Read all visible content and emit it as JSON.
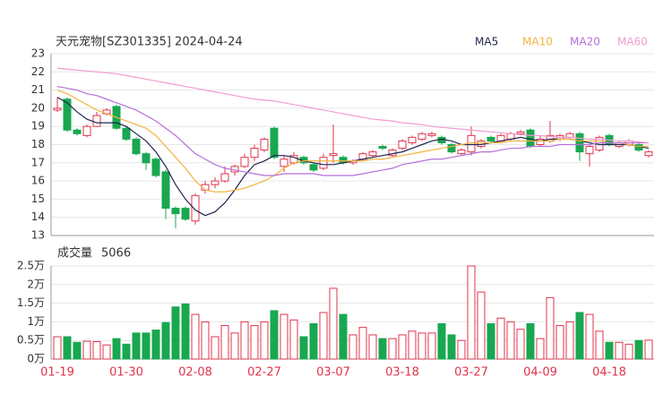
{
  "chart_data": [
    {
      "type": "candlestick",
      "title": "天元宠物[SZ301335] 2024-04-24",
      "categories": [
        "01-19",
        null,
        null,
        null,
        null,
        null,
        null,
        "01-30",
        null,
        null,
        null,
        null,
        null,
        null,
        "02-08",
        null,
        null,
        null,
        null,
        null,
        null,
        "02-27",
        null,
        null,
        null,
        null,
        null,
        null,
        "03-07",
        null,
        null,
        null,
        null,
        null,
        null,
        "03-18",
        null,
        null,
        null,
        null,
        null,
        null,
        "03-27",
        null,
        null,
        null,
        null,
        null,
        null,
        "04-09",
        null,
        null,
        null,
        null,
        null,
        null,
        "04-18",
        null,
        null,
        null,
        null
      ],
      "open": [
        19.9,
        20.5,
        18.8,
        18.5,
        19.0,
        19.7,
        20.1,
        18.9,
        18.3,
        17.5,
        17.2,
        16.5,
        14.5,
        14.5,
        13.8,
        15.5,
        15.8,
        16.0,
        16.5,
        16.8,
        17.3,
        17.7,
        18.9,
        16.8,
        17.0,
        17.3,
        16.9,
        16.7,
        17.4,
        17.3,
        17.0,
        17.2,
        17.4,
        17.9,
        17.4,
        17.8,
        18.1,
        18.3,
        18.5,
        18.4,
        18.0,
        17.5,
        17.6,
        17.9,
        18.4,
        18.2,
        18.3,
        18.6,
        18.8,
        18.0,
        18.2,
        18.3,
        18.4,
        18.6,
        17.5,
        17.7,
        18.5,
        17.9,
        18.0,
        18.0,
        17.4
      ],
      "high": [
        20.6,
        20.6,
        18.9,
        19.1,
        19.8,
        20.0,
        20.2,
        19.0,
        18.4,
        17.6,
        17.3,
        16.6,
        14.6,
        14.6,
        15.3,
        16.0,
        16.2,
        16.8,
        16.9,
        17.5,
        18.0,
        18.4,
        19.0,
        17.4,
        17.6,
        17.4,
        17.0,
        17.5,
        19.1,
        17.4,
        17.2,
        17.6,
        17.7,
        18.0,
        17.8,
        18.3,
        18.5,
        18.7,
        18.7,
        18.5,
        18.1,
        17.8,
        19.0,
        18.3,
        18.5,
        18.6,
        18.7,
        18.8,
        18.9,
        18.5,
        19.3,
        18.6,
        18.7,
        18.7,
        18.0,
        18.5,
        18.6,
        18.2,
        18.3,
        18.1,
        17.7
      ],
      "low": [
        19.8,
        18.7,
        18.5,
        18.4,
        19.0,
        19.6,
        18.8,
        18.2,
        17.4,
        16.6,
        16.2,
        13.9,
        13.4,
        13.8,
        13.6,
        15.3,
        15.6,
        15.9,
        16.3,
        16.7,
        17.1,
        17.6,
        17.2,
        16.5,
        16.9,
        16.9,
        16.5,
        16.6,
        17.0,
        16.9,
        16.9,
        17.1,
        17.3,
        17.7,
        17.3,
        17.7,
        18.0,
        18.2,
        18.4,
        18.0,
        17.5,
        17.4,
        17.4,
        17.8,
        18.1,
        18.1,
        18.2,
        18.5,
        17.8,
        17.9,
        18.1,
        18.2,
        18.3,
        17.1,
        16.8,
        17.6,
        17.9,
        17.8,
        17.9,
        17.6,
        17.3
      ],
      "close": [
        20.0,
        18.8,
        18.6,
        19.0,
        19.6,
        19.9,
        18.9,
        18.3,
        17.5,
        17.0,
        16.3,
        14.5,
        14.2,
        13.9,
        15.2,
        15.8,
        16.0,
        16.4,
        16.8,
        17.3,
        17.8,
        18.3,
        17.3,
        17.2,
        17.4,
        17.0,
        16.6,
        17.3,
        17.5,
        17.0,
        17.1,
        17.5,
        17.6,
        17.8,
        17.7,
        18.2,
        18.4,
        18.6,
        18.6,
        18.1,
        17.6,
        17.7,
        18.5,
        18.2,
        18.2,
        18.5,
        18.6,
        18.7,
        17.9,
        18.3,
        18.5,
        18.5,
        18.6,
        17.6,
        17.9,
        18.4,
        18.0,
        18.1,
        18.2,
        17.7,
        17.6
      ],
      "up_color": "#e0344b",
      "down_color": "#19a750",
      "series": [
        {
          "name": "MA5",
          "color": "#1f2550",
          "values": [
            20.6,
            20.3,
            19.8,
            19.4,
            19.2,
            19.2,
            19.2,
            19.0,
            18.6,
            18.2,
            17.6,
            16.8,
            15.8,
            15.0,
            14.4,
            14.1,
            14.3,
            14.8,
            15.5,
            16.3,
            16.9,
            17.1,
            17.4,
            17.4,
            17.3,
            17.1,
            17.0,
            16.9,
            16.9,
            17.0,
            17.1,
            17.2,
            17.3,
            17.4,
            17.5,
            17.6,
            17.8,
            18.0,
            18.2,
            18.3,
            18.2,
            18.0,
            18.0,
            18.0,
            18.1,
            18.2,
            18.3,
            18.4,
            18.3,
            18.2,
            18.3,
            18.3,
            18.3,
            18.2,
            18.1,
            18.0,
            18.0,
            18.0,
            18.0,
            17.9,
            17.8
          ]
        },
        {
          "name": "MA10",
          "color": "#f2b33d",
          "values": [
            21.0,
            20.8,
            20.5,
            20.2,
            19.9,
            19.7,
            19.5,
            19.3,
            19.1,
            18.9,
            18.5,
            17.9,
            17.3,
            16.7,
            16.0,
            15.5,
            15.4,
            15.4,
            15.5,
            15.6,
            15.8,
            16.0,
            16.3,
            16.7,
            17.0,
            17.1,
            17.1,
            17.1,
            17.1,
            17.1,
            17.1,
            17.1,
            17.2,
            17.2,
            17.3,
            17.4,
            17.5,
            17.6,
            17.7,
            17.8,
            17.9,
            18.0,
            18.1,
            18.1,
            18.1,
            18.1,
            18.2,
            18.2,
            18.2,
            18.2,
            18.2,
            18.3,
            18.3,
            18.2,
            18.2,
            18.2,
            18.1,
            18.1,
            18.0,
            17.9,
            17.9
          ]
        },
        {
          "name": "MA20",
          "color": "#b46fdc",
          "values": [
            21.2,
            21.1,
            21.0,
            20.8,
            20.7,
            20.5,
            20.3,
            20.1,
            19.9,
            19.6,
            19.3,
            18.9,
            18.5,
            18.0,
            17.5,
            17.2,
            16.9,
            16.7,
            16.6,
            16.5,
            16.4,
            16.3,
            16.3,
            16.4,
            16.4,
            16.4,
            16.4,
            16.3,
            16.3,
            16.3,
            16.3,
            16.4,
            16.5,
            16.6,
            16.7,
            16.9,
            17.0,
            17.1,
            17.2,
            17.2,
            17.3,
            17.4,
            17.5,
            17.6,
            17.6,
            17.7,
            17.8,
            17.8,
            17.9,
            17.9,
            17.9,
            18.0,
            18.0,
            18.0,
            18.0,
            18.1,
            18.1,
            18.1,
            18.1,
            18.1,
            18.1
          ]
        },
        {
          "name": "MA60",
          "color": "#f29ccf",
          "values": [
            22.2,
            22.15,
            22.1,
            22.05,
            22.0,
            21.95,
            21.9,
            21.8,
            21.7,
            21.6,
            21.5,
            21.4,
            21.3,
            21.2,
            21.1,
            21.0,
            20.9,
            20.8,
            20.7,
            20.6,
            20.5,
            20.45,
            20.4,
            20.3,
            20.2,
            20.1,
            20.0,
            19.9,
            19.8,
            19.7,
            19.6,
            19.5,
            19.4,
            19.35,
            19.3,
            19.2,
            19.15,
            19.1,
            19.0,
            18.95,
            18.9,
            18.85,
            18.8,
            18.75,
            18.7,
            18.65,
            18.6,
            18.55,
            18.5,
            18.5,
            18.45,
            18.4,
            18.4,
            18.35,
            18.3,
            18.3,
            18.25,
            18.2,
            18.2,
            18.15,
            18.1
          ]
        }
      ],
      "ylim": [
        13,
        23
      ],
      "yticks": [
        13,
        14,
        15,
        16,
        17,
        18,
        19,
        20,
        21,
        22,
        23
      ],
      "grid": true
    },
    {
      "type": "bar",
      "title": "成交量",
      "values": [
        6000,
        6000,
        4500,
        4800,
        4700,
        3800,
        5500,
        4000,
        7000,
        7000,
        7800,
        9800,
        14000,
        14800,
        12000,
        10000,
        6000,
        9000,
        7000,
        10000,
        9000,
        10000,
        13000,
        12000,
        10500,
        6000,
        9500,
        12500,
        19000,
        12000,
        6500,
        8500,
        6500,
        5500,
        5500,
        6500,
        7500,
        7000,
        7000,
        9500,
        6500,
        5000,
        25000,
        18000,
        9500,
        11000,
        10000,
        8000,
        9500,
        5500,
        16500,
        9000,
        10000,
        12500,
        12000,
        7500,
        4500,
        4500,
        4000,
        5000,
        5066
      ],
      "ylim": [
        0,
        25000
      ],
      "yticks": [
        {
          "value": 0,
          "label": "0万"
        },
        {
          "value": 5000,
          "label": "0.5万"
        },
        {
          "value": 10000,
          "label": "1万"
        },
        {
          "value": 15000,
          "label": "1.5万"
        },
        {
          "value": 20000,
          "label": "2万"
        },
        {
          "value": 25000,
          "label": "2.5万"
        }
      ],
      "grid": true
    }
  ]
}
